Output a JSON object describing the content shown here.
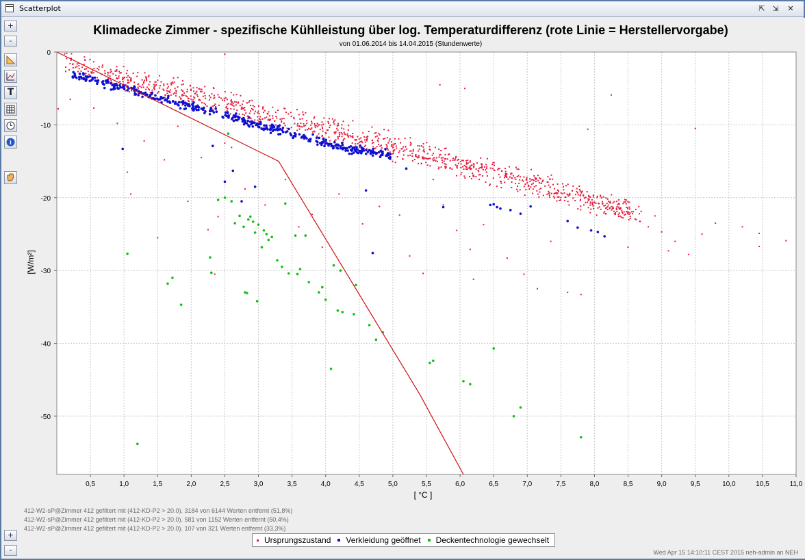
{
  "window": {
    "title": "Scatterplot"
  },
  "toolbar": {
    "zoom_in": "+",
    "zoom_out": "-",
    "zoom_in_bottom": "+",
    "zoom_out_bottom": "-",
    "icons": [
      "ruler-icon",
      "chart-edit-icon",
      "text-icon",
      "table-icon",
      "clock-icon",
      "info-icon",
      "hand-icon"
    ]
  },
  "chart_data": {
    "type": "scatter",
    "title": "Klimadecke Zimmer - spezifische Kühlleistung über log. Temperaturdifferenz (rote Linie = Herstellervorgabe)",
    "subtitle": "von 01.06.2014 bis 14.04.2015 (Stundenwerte)",
    "xlabel": "[ °C ]",
    "ylabel": "[W/m²]",
    "xlim": [
      0,
      11.0
    ],
    "ylim": [
      -58,
      0
    ],
    "x_ticks": [
      "0,5",
      "1,0",
      "1,5",
      "2,0",
      "2,5",
      "3,0",
      "3,5",
      "4,0",
      "4,5",
      "5,0",
      "5,5",
      "6,0",
      "6,5",
      "7,0",
      "7,5",
      "8,0",
      "8,5",
      "9,0",
      "9,5",
      "10,0",
      "10,5",
      "11,0"
    ],
    "y_ticks": [
      "0",
      "-10",
      "-20",
      "-30",
      "-40",
      "-50"
    ],
    "grid": true,
    "colors": {
      "red": "#e8183a",
      "blue": "#1010d0",
      "green": "#10c010",
      "line": "#cc1010"
    },
    "reference_line": {
      "x": [
        0.0,
        3.3,
        5.4,
        6.05
      ],
      "y": [
        0.0,
        -15.0,
        -47.0,
        -58.0
      ]
    },
    "series": [
      {
        "name": "Ursprungszustand",
        "color": "#e8183a",
        "band": {
          "x_range": [
            0.1,
            8.7
          ],
          "center": [
            [
              0.1,
              -1.2
            ],
            [
              1.0,
              -3.8
            ],
            [
              2.0,
              -5.8
            ],
            [
              3.0,
              -8.5
            ],
            [
              4.0,
              -10.5
            ],
            [
              5.0,
              -13.0
            ],
            [
              6.0,
              -15.5
            ],
            [
              7.0,
              -17.8
            ],
            [
              8.0,
              -20.5
            ],
            [
              8.7,
              -22.5
            ]
          ],
          "spread": 2.4,
          "count": 1150
        },
        "outliers": [
          [
            0.02,
            -7.8
          ],
          [
            0.2,
            -6.5
          ],
          [
            0.55,
            -7.7
          ],
          [
            0.9,
            -9.8
          ],
          [
            1.05,
            -16.5
          ],
          [
            1.1,
            -19.5
          ],
          [
            1.3,
            -12.2
          ],
          [
            1.5,
            -25.5
          ],
          [
            1.6,
            -14.8
          ],
          [
            1.8,
            -10.2
          ],
          [
            1.95,
            -20.5
          ],
          [
            2.15,
            -14.5
          ],
          [
            2.25,
            -24.4
          ],
          [
            2.35,
            -30.5
          ],
          [
            2.4,
            -22.6
          ],
          [
            2.5,
            -12.5
          ],
          [
            2.6,
            -13.1
          ],
          [
            2.8,
            -18.8
          ],
          [
            3.1,
            -21.0
          ],
          [
            3.4,
            -17.5
          ],
          [
            3.6,
            -24.0
          ],
          [
            3.8,
            -22.3
          ],
          [
            3.95,
            -26.8
          ],
          [
            4.2,
            -19.5
          ],
          [
            4.55,
            -23.6
          ],
          [
            4.8,
            -21.2
          ],
          [
            5.1,
            -22.4
          ],
          [
            5.25,
            -28.0
          ],
          [
            5.45,
            -30.4
          ],
          [
            5.6,
            -17.5
          ],
          [
            5.75,
            -21.0
          ],
          [
            5.95,
            -24.5
          ],
          [
            6.15,
            -27.1
          ],
          [
            6.2,
            -31.2
          ],
          [
            6.35,
            -23.7
          ],
          [
            6.7,
            -28.3
          ],
          [
            6.95,
            -30.5
          ],
          [
            7.15,
            -32.5
          ],
          [
            7.35,
            -26.0
          ],
          [
            7.6,
            -33.0
          ],
          [
            7.8,
            -33.3
          ],
          [
            7.9,
            -10.6
          ],
          [
            8.25,
            -5.9
          ],
          [
            8.5,
            -26.8
          ],
          [
            8.8,
            -24.0
          ],
          [
            9.1,
            -27.3
          ],
          [
            9.4,
            -27.8
          ],
          [
            9.5,
            -10.5
          ],
          [
            9.8,
            -23.5
          ],
          [
            10.2,
            -24.0
          ],
          [
            10.45,
            -24.9
          ],
          [
            10.45,
            -26.7
          ],
          [
            10.85,
            -25.9
          ],
          [
            5.7,
            -4.5
          ],
          [
            6.07,
            -5.0
          ],
          [
            2.5,
            -0.3
          ],
          [
            1.8,
            -3.5
          ],
          [
            0.3,
            -2.0
          ],
          [
            9.2,
            -26.0
          ],
          [
            9.6,
            -25.0
          ],
          [
            8.9,
            -22.5
          ],
          [
            9.0,
            -24.7
          ]
        ]
      },
      {
        "name": "Verkleidung geöffnet",
        "color": "#1010d0",
        "band": {
          "x_range": [
            0.2,
            5.0
          ],
          "center": [
            [
              0.2,
              -3.0
            ],
            [
              1.0,
              -5.0
            ],
            [
              2.0,
              -7.5
            ],
            [
              3.0,
              -10.0
            ],
            [
              3.8,
              -12.0
            ],
            [
              4.5,
              -13.5
            ],
            [
              5.0,
              -14.2
            ]
          ],
          "spread": 0.9,
          "count": 420
        },
        "outliers": [
          [
            0.98,
            -13.3
          ],
          [
            2.32,
            -12.9
          ],
          [
            2.5,
            -17.8
          ],
          [
            2.62,
            -16.3
          ],
          [
            2.75,
            -20.5
          ],
          [
            2.95,
            -18.5
          ],
          [
            4.6,
            -19.0
          ],
          [
            4.7,
            -27.6
          ],
          [
            5.2,
            -16.0
          ],
          [
            5.75,
            -21.3
          ],
          [
            6.45,
            -21.0
          ],
          [
            6.55,
            -21.3
          ],
          [
            6.75,
            -21.7
          ],
          [
            6.9,
            -22.2
          ],
          [
            7.05,
            -21.2
          ],
          [
            7.6,
            -23.2
          ],
          [
            7.75,
            -24.1
          ],
          [
            7.95,
            -24.5
          ],
          [
            8.05,
            -24.7
          ],
          [
            8.15,
            -25.3
          ],
          [
            6.6,
            -21.5
          ],
          [
            6.5,
            -20.9
          ]
        ]
      },
      {
        "name": "Deckentechnologie gewechselt",
        "color": "#10c010",
        "points": [
          [
            1.05,
            -27.7
          ],
          [
            1.2,
            -53.8
          ],
          [
            1.65,
            -31.8
          ],
          [
            1.72,
            -31.0
          ],
          [
            1.85,
            -34.7
          ],
          [
            2.28,
            -28.2
          ],
          [
            2.3,
            -30.3
          ],
          [
            2.4,
            -20.3
          ],
          [
            2.5,
            -20.0
          ],
          [
            2.55,
            -11.2
          ],
          [
            2.6,
            -20.5
          ],
          [
            2.65,
            -23.5
          ],
          [
            2.72,
            -22.5
          ],
          [
            2.78,
            -24.0
          ],
          [
            2.8,
            -33.0
          ],
          [
            2.83,
            -33.1
          ],
          [
            2.85,
            -23.0
          ],
          [
            2.88,
            -22.6
          ],
          [
            2.92,
            -23.3
          ],
          [
            2.95,
            -24.8
          ],
          [
            2.98,
            -34.2
          ],
          [
            3.0,
            -23.7
          ],
          [
            3.05,
            -26.8
          ],
          [
            3.08,
            -24.5
          ],
          [
            3.12,
            -25.0
          ],
          [
            3.15,
            -25.8
          ],
          [
            3.2,
            -25.4
          ],
          [
            3.28,
            -28.6
          ],
          [
            3.35,
            -29.5
          ],
          [
            3.4,
            -20.8
          ],
          [
            3.45,
            -30.4
          ],
          [
            3.55,
            -25.2
          ],
          [
            3.58,
            -30.5
          ],
          [
            3.62,
            -29.8
          ],
          [
            3.7,
            -25.2
          ],
          [
            3.75,
            -31.6
          ],
          [
            3.9,
            -33.0
          ],
          [
            3.95,
            -32.3
          ],
          [
            4.0,
            -34.0
          ],
          [
            4.08,
            -43.5
          ],
          [
            4.12,
            -29.3
          ],
          [
            4.18,
            -35.5
          ],
          [
            4.22,
            -30.0
          ],
          [
            4.25,
            -35.7
          ],
          [
            4.42,
            -36.0
          ],
          [
            4.45,
            -32.0
          ],
          [
            4.65,
            -37.5
          ],
          [
            4.75,
            -39.5
          ],
          [
            4.85,
            -38.5
          ],
          [
            5.55,
            -42.7
          ],
          [
            5.6,
            -42.4
          ],
          [
            6.05,
            -45.2
          ],
          [
            6.15,
            -45.6
          ],
          [
            6.5,
            -40.7
          ],
          [
            6.8,
            -50.0
          ],
          [
            6.9,
            -48.8
          ],
          [
            7.8,
            -52.9
          ]
        ]
      }
    ]
  },
  "filters": [
    "412-W2-sP@Zimmer 412 gefiltert mit (412-KD-P2 > 20.0). 3184 von 6144 Werten entfernt (51,8%)",
    "412-W2-sP@Zimmer 412 gefiltert mit (412-KD-P2 > 20.0). 581 von 1152 Werten entfernt (50,4%)",
    "412-W2-sP@Zimmer 412 gefiltert mit (412-KD-P2 > 20.0). 107 von 321 Werten entfernt (33,3%)"
  ],
  "footer": "Wed Apr 15 14:10:11 CEST 2015    neh-admin an NEH"
}
